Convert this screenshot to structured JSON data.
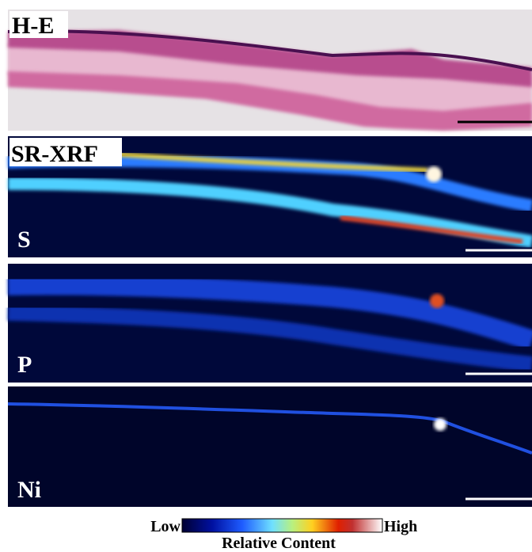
{
  "labels": {
    "he": "H-E",
    "sr_xrf": "SR-XRF",
    "s": "S",
    "p": "P",
    "ni": "Ni"
  },
  "colorbar": {
    "low": "Low",
    "high": "High",
    "title": "Relative Content"
  }
}
